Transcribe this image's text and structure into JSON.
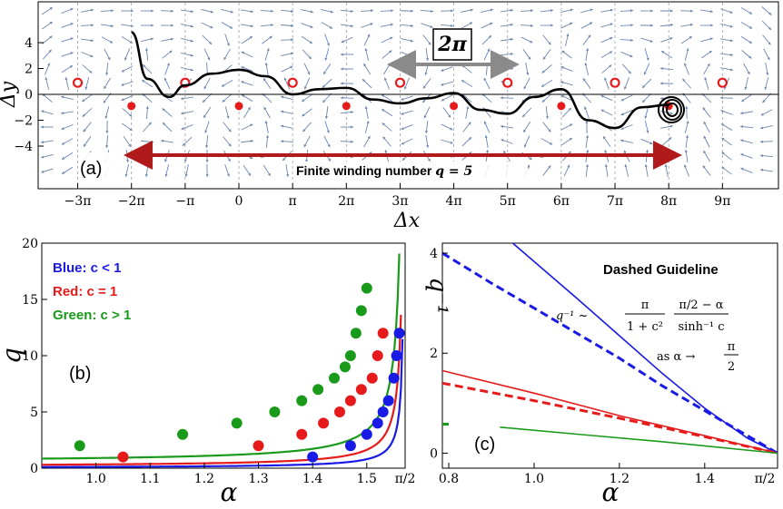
{
  "panel_a": {
    "label": "(a)",
    "xlabel": "Δx",
    "ylabel": "Δy",
    "two_pi_box": "2π",
    "winding_text": "Finite winding number",
    "winding_var": "q = 5",
    "xticks": [
      "−3π",
      "−2π",
      "−π",
      "0",
      "π",
      "2π",
      "3π",
      "4π",
      "5π",
      "6π",
      "7π",
      "8π",
      "9π"
    ],
    "yticks": [
      "4",
      "2",
      "0",
      "−2",
      "−4"
    ]
  },
  "panel_b": {
    "label": "(b)",
    "legend": [
      "Blue: c < 1",
      "Red: c = 1",
      "Green: c > 1"
    ],
    "xlabel": "α",
    "ylabel": "q",
    "xticks": [
      "1.0",
      "1.1",
      "1.2",
      "1.3",
      "1.4",
      "1.5",
      "π/2"
    ],
    "yticks": [
      "0",
      "5",
      "10",
      "15",
      "20"
    ]
  },
  "panel_c": {
    "label": "(c)",
    "title": "Dashed Guideline",
    "formula_lhs": "q⁻¹ ~",
    "formula_num1": "π",
    "formula_den1": "1 + c²",
    "formula_num2": "π/2 − α",
    "formula_den2": "sinh⁻¹ c",
    "formula_as": "as  α → ",
    "formula_as_num": "π",
    "formula_as_den": "2",
    "xlabel": "α",
    "ylabel": "q⁻¹",
    "xticks": [
      "0.8",
      "1.0",
      "1.2",
      "1.4",
      "π/2"
    ],
    "yticks": [
      "0",
      "2",
      "4"
    ]
  },
  "chart_data": [
    {
      "type": "line",
      "panel": "a",
      "xlabel": "Δx",
      "ylabel": "Δy",
      "xlim": [
        "-3.3π",
        "9.6π"
      ],
      "ylim": [
        -5.2,
        5.2
      ],
      "series": [
        {
          "color": "#000000",
          "x": [
            "-2π",
            "-1.7π",
            "-1.3π",
            "-π",
            "-0.5π",
            "0",
            "0.5π",
            "π",
            "1.5π",
            "2π",
            "2.5π",
            "3π",
            "3.5π",
            "4π",
            "4.5π",
            "5π",
            "5.5π",
            "6π",
            "6.5π",
            "7π",
            "7.5π",
            "8π"
          ],
          "y": [
            4.8,
            1.2,
            -0.2,
            0.7,
            1.6,
            1.9,
            1.4,
            0.0,
            0.4,
            0.5,
            -0.4,
            -0.7,
            -0.3,
            0.1,
            -1.2,
            -1.5,
            -0.2,
            0.4,
            -2.0,
            -2.6,
            -1.0,
            -0.8
          ]
        }
      ],
      "markers": {
        "open_circles_y": 0.9,
        "open_circles_x": [
          "-3π",
          "-π",
          "π",
          "3π",
          "5π",
          "7π",
          "9π"
        ],
        "filled_dots_y": -0.9,
        "filled_dots_x": [
          "-2π",
          "0",
          "2π",
          "4π",
          "6π",
          "8π"
        ]
      }
    },
    {
      "type": "line",
      "panel": "b",
      "xlabel": "α",
      "ylabel": "q",
      "xlim": [
        0.9,
        1.5708
      ],
      "ylim": [
        0,
        20
      ],
      "series": [
        {
          "name": "Blue: c < 1",
          "color": "#1a1ae6",
          "points_x": [
            1.4,
            1.47,
            1.5,
            1.52,
            1.53,
            1.54,
            1.55,
            1.555,
            1.56
          ],
          "points_y": [
            1,
            2,
            3,
            4,
            5,
            6,
            8,
            10,
            12
          ]
        },
        {
          "name": "Red: c = 1",
          "color": "#e61a1a",
          "points_x": [
            1.05,
            1.3,
            1.38,
            1.42,
            1.45,
            1.47,
            1.49,
            1.51,
            1.52,
            1.53
          ],
          "points_y": [
            1,
            2,
            3,
            4,
            5,
            6,
            7,
            8,
            10,
            12
          ]
        },
        {
          "name": "Green: c > 1",
          "color": "#1a9a1a",
          "points_x": [
            0.97,
            1.16,
            1.26,
            1.33,
            1.38,
            1.41,
            1.44,
            1.46,
            1.47,
            1.48,
            1.49,
            1.5
          ],
          "points_y": [
            2,
            3,
            4,
            5,
            6,
            7,
            8,
            9,
            10,
            12,
            14,
            16
          ]
        }
      ]
    },
    {
      "type": "line",
      "panel": "c",
      "xlabel": "α",
      "ylabel": "q⁻¹",
      "xlim": [
        0.785,
        1.5708
      ],
      "ylim": [
        -0.3,
        4.2
      ],
      "series": [
        {
          "color": "#1a1ae6",
          "style": "solid",
          "x": [
            0.95,
            1.1,
            1.2,
            1.3,
            1.4,
            1.5,
            1.5708
          ],
          "y": [
            4.2,
            3.1,
            2.35,
            1.6,
            0.9,
            0.3,
            0.0
          ]
        },
        {
          "color": "#1a1ae6",
          "style": "dashed",
          "x": [
            0.785,
            0.9,
            1.0,
            1.1,
            1.2,
            1.3,
            1.4,
            1.5,
            1.5708
          ],
          "y": [
            4.0,
            3.4,
            2.9,
            2.4,
            1.9,
            1.35,
            0.85,
            0.35,
            0.0
          ]
        },
        {
          "color": "#e61a1a",
          "style": "solid",
          "x": [
            0.785,
            1.0,
            1.2,
            1.4,
            1.5708
          ],
          "y": [
            1.65,
            1.2,
            0.75,
            0.35,
            0.0
          ]
        },
        {
          "color": "#e61a1a",
          "style": "dashed",
          "x": [
            0.785,
            1.0,
            1.2,
            1.4,
            1.5708
          ],
          "y": [
            1.4,
            1.05,
            0.7,
            0.33,
            0.0
          ]
        },
        {
          "color": "#1a9a1a",
          "style": "solid",
          "x": [
            0.92,
            1.1,
            1.3,
            1.5708
          ],
          "y": [
            0.52,
            0.38,
            0.23,
            0.0
          ]
        },
        {
          "color": "#1a9a1a",
          "style": "dashed",
          "x": [
            0.785,
            0.8
          ],
          "y": [
            0.58,
            0.58
          ]
        }
      ]
    }
  ]
}
